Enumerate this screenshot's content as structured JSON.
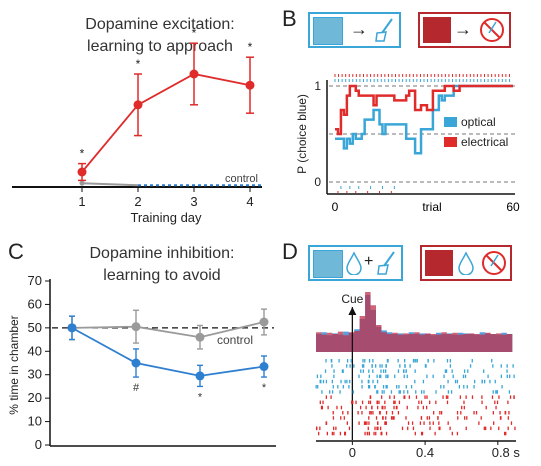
{
  "colors": {
    "red": "#e02b2b",
    "blue": "#2f7fd0",
    "gray": "#9a9a9a",
    "lightblue": "#3aa6d8",
    "box_red": "#b5282e"
  },
  "panel_A": {
    "title_line1": "Dopamine excitation:",
    "title_line2": "learning to approach",
    "control_label": "control",
    "xlabel": "Training day",
    "star": "*"
  },
  "panel_B": {
    "letter": "B",
    "ylabel": "P (choice blue)",
    "xlabel": "trial",
    "legend_optical": "optical",
    "legend_electrical": "electrical",
    "icon_arrow": "→"
  },
  "panel_C": {
    "letter": "C",
    "title_line1": "Dopamine inhibition:",
    "title_line2": "learning to avoid",
    "ylabel": "% time in chamber",
    "control_label": "control",
    "hash": "#",
    "star": "*"
  },
  "panel_D": {
    "letter": "D",
    "cue_label": "Cue",
    "plus": "+",
    "icon_names": [
      "mouse-icon",
      "droplet-icon",
      "brush-icon",
      "no-brush-icon"
    ]
  },
  "chart_data": [
    {
      "panel": "A",
      "type": "line",
      "title": "Dopamine excitation: learning to approach",
      "xlabel": "Training day",
      "ylabel": "",
      "categories": [
        1,
        2,
        3,
        4
      ],
      "xticks": [
        "1",
        "2",
        "3",
        "4"
      ],
      "series": [
        {
          "name": "",
          "color": "#e02b2b",
          "values": [
            0.1,
            0.58,
            0.8,
            0.72
          ],
          "err": [
            0.06,
            0.22,
            0.22,
            0.2
          ],
          "stars": [
            true,
            true,
            true,
            true
          ]
        },
        {
          "name": "control",
          "color": "#9a9a9a",
          "values": [
            0.02,
            0.0,
            0.0,
            0.0
          ],
          "dashed_after": true
        }
      ],
      "ylim": [
        0,
        1
      ]
    },
    {
      "panel": "B",
      "type": "line",
      "xlabel": "trial",
      "ylabel": "P (choice blue)",
      "xlim": [
        0,
        60
      ],
      "ylim": [
        0,
        1
      ],
      "xticks": [
        "0",
        "60"
      ],
      "yticks": [
        "0",
        "1"
      ],
      "series": [
        {
          "name": "optical",
          "color": "#3aa6d8",
          "x": [
            0,
            2,
            3,
            4,
            5,
            6,
            7,
            9,
            10,
            12,
            13,
            14,
            15,
            16,
            17,
            19,
            22,
            24,
            25,
            26,
            27,
            28,
            29,
            31,
            33,
            35,
            36,
            37,
            38,
            40,
            44,
            48,
            52,
            56,
            60
          ],
          "y": [
            0.45,
            0.45,
            0.35,
            0.45,
            0.4,
            0.5,
            0.45,
            0.5,
            0.65,
            0.65,
            0.75,
            0.75,
            0.6,
            0.5,
            0.6,
            0.6,
            0.6,
            0.45,
            0.45,
            0.45,
            0.3,
            0.3,
            0.55,
            0.55,
            0.75,
            0.9,
            0.85,
            0.9,
            0.9,
            1,
            1,
            1,
            1,
            1,
            1
          ]
        },
        {
          "name": "electrical",
          "color": "#e02b2b",
          "x": [
            0,
            1,
            2,
            3,
            4,
            5,
            6,
            7,
            8,
            10,
            12,
            13,
            14,
            17,
            20,
            23,
            24,
            25,
            27,
            29,
            31,
            33,
            35,
            37,
            39,
            40,
            42,
            44,
            48,
            52,
            56,
            60
          ],
          "y": [
            0.55,
            0.5,
            0.75,
            0.7,
            0.9,
            1,
            1,
            0.95,
            0.9,
            0.9,
            0.9,
            0.8,
            0.9,
            0.9,
            0.85,
            0.85,
            0.9,
            0.95,
            0.75,
            0.8,
            0.75,
            0.95,
            0.95,
            1,
            1,
            0.95,
            1,
            1,
            1,
            1,
            1,
            1
          ]
        }
      ],
      "reference_lines": [
        0,
        0.5,
        1
      ]
    },
    {
      "panel": "C",
      "type": "line",
      "title": "Dopamine inhibition: learning to avoid",
      "xlabel": "",
      "ylabel": "% time in chamber",
      "categories": [
        1,
        2,
        3,
        4
      ],
      "ylim": [
        0,
        70
      ],
      "yticks": [
        0,
        10,
        20,
        30,
        40,
        50,
        60,
        70
      ],
      "series": [
        {
          "name": "",
          "color": "#2f7fd0",
          "values": [
            50,
            35,
            29.5,
            33.5
          ],
          "err": [
            5,
            6,
            4.5,
            4.5
          ],
          "marks": [
            "",
            "#",
            "*",
            "*"
          ]
        },
        {
          "name": "control",
          "color": "#9a9a9a",
          "values": [
            50,
            50.5,
            46,
            52.5
          ],
          "err": [
            5,
            7,
            5,
            5.5
          ]
        }
      ],
      "reference_lines": [
        50
      ]
    },
    {
      "panel": "D",
      "type": "raster",
      "xlabel": "",
      "xticks": [
        "0",
        "0.4",
        "0.8 s"
      ],
      "xlim": [
        -0.2,
        0.9
      ],
      "cue_time": 0,
      "annotation": "Cue",
      "psth": {
        "bins": [
          -0.2,
          -0.17,
          -0.14,
          -0.11,
          -0.08,
          -0.05,
          -0.02,
          0.01,
          0.04,
          0.07,
          0.1,
          0.13,
          0.16,
          0.19,
          0.22,
          0.25,
          0.28,
          0.31,
          0.34,
          0.37,
          0.4,
          0.43,
          0.46,
          0.49,
          0.52,
          0.55,
          0.58,
          0.61,
          0.64,
          0.67,
          0.7,
          0.73,
          0.76,
          0.79,
          0.82,
          0.85
        ],
        "blue": [
          0.3,
          0.33,
          0.28,
          0.31,
          0.29,
          0.34,
          0.32,
          0.38,
          0.55,
          0.95,
          0.7,
          0.42,
          0.36,
          0.33,
          0.3,
          0.31,
          0.29,
          0.33,
          0.3,
          0.31,
          0.3,
          0.28,
          0.32,
          0.3,
          0.31,
          0.29,
          0.32,
          0.31,
          0.3,
          0.29,
          0.33,
          0.31,
          0.3,
          0.29,
          0.32,
          0.3
        ],
        "red": [
          0.33,
          0.29,
          0.32,
          0.3,
          0.34,
          0.28,
          0.33,
          0.35,
          0.6,
          1.0,
          0.78,
          0.45,
          0.33,
          0.3,
          0.32,
          0.29,
          0.31,
          0.3,
          0.33,
          0.29,
          0.31,
          0.3,
          0.29,
          0.33,
          0.3,
          0.32,
          0.29,
          0.3,
          0.31,
          0.3,
          0.29,
          0.32,
          0.3,
          0.31,
          0.29,
          0.3
        ]
      },
      "raster_rows": {
        "blue": 7,
        "red": 8
      }
    }
  ]
}
